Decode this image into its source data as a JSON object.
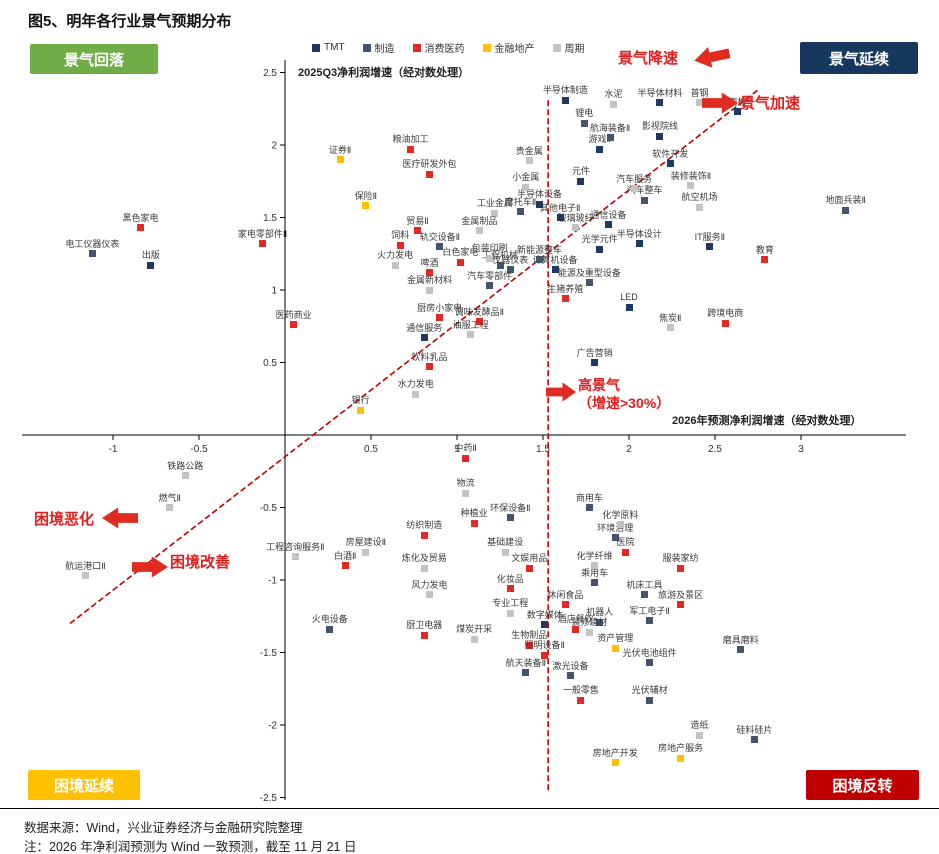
{
  "page": {
    "title": "图5、明年各行业景气预期分布",
    "footer": {
      "source": "数据来源：Wind，兴业证券经济与金融研究院整理",
      "note": "注：2026 年净利润预测为 Wind 一致预测，截至 11 月 21 日"
    }
  },
  "annotations": {
    "quadrants": [
      {
        "text": "景气回落",
        "bg": "#70ad47"
      },
      {
        "text": "景气延续",
        "bg": "#17375e"
      },
      {
        "text": "困境延续",
        "bg": "#ffc000"
      },
      {
        "text": "困境反转",
        "bg": "#c00000"
      }
    ],
    "arrows": [
      {
        "id": "slowdown",
        "text": "景气降速",
        "direction": "left"
      },
      {
        "id": "accel",
        "text": "景气加速",
        "direction": "right"
      },
      {
        "id": "high",
        "text": "高景气\n（增速>30%）",
        "direction": "right"
      },
      {
        "id": "worsen",
        "text": "困境恶化",
        "direction": "left"
      },
      {
        "id": "improve",
        "text": "困境改善",
        "direction": "right"
      }
    ]
  },
  "chart_data": {
    "type": "scatter",
    "title": "图5、明年各行业景气预期分布",
    "xlabel": "2026年预测净利润增速（经对数处理）",
    "ylabel": "2025Q3净利润增速（经对数处理）",
    "xlim": [
      -1.5,
      3.5
    ],
    "ylim": [
      -2.6,
      2.6
    ],
    "x_ticks": [
      -1,
      -0.5,
      0.5,
      1,
      1.5,
      2,
      2.5,
      3
    ],
    "y_ticks": [
      2.5,
      2,
      1.5,
      1,
      0.5,
      -0.5,
      -1,
      -1.5,
      -2,
      -2.5
    ],
    "grid": false,
    "legend_position": "top-center",
    "legend": [
      {
        "name": "TMT",
        "color": "#1f3864"
      },
      {
        "name": "制造",
        "color": "#44546a"
      },
      {
        "name": "消费医药",
        "color": "#e02a23"
      },
      {
        "name": "金融地产",
        "color": "#ffc000"
      },
      {
        "name": "周期",
        "color": "#c3c3c3"
      }
    ],
    "reference_lines": {
      "diagonal": {
        "from": {
          "x": -1.25,
          "y": -1.3
        },
        "to": {
          "x": 2.75,
          "y": 2.38
        },
        "style": "dashed",
        "color": "#c00000"
      },
      "vertical": {
        "x": 1.53,
        "y_from": -2.45,
        "y_to": 2.31,
        "style": "dashed",
        "color": "#c00000"
      }
    },
    "series": [
      {
        "name": "TMT",
        "color": "#1f3864",
        "points": [
          {
            "label": "半导体制造",
            "x": 1.63,
            "y": 2.31
          },
          {
            "label": "半导体材料",
            "x": 2.18,
            "y": 2.29
          },
          {
            "label": "面板",
            "x": 2.63,
            "y": 2.23
          },
          {
            "label": "影视院线",
            "x": 2.18,
            "y": 2.06
          },
          {
            "label": "游戏Ⅱ",
            "x": 1.83,
            "y": 1.97
          },
          {
            "label": "软件开发",
            "x": 2.24,
            "y": 1.87
          },
          {
            "label": "元件",
            "x": 1.72,
            "y": 1.75
          },
          {
            "label": "其他电子Ⅱ",
            "x": 1.6,
            "y": 1.5
          },
          {
            "label": "半导体设备",
            "x": 1.48,
            "y": 1.59
          },
          {
            "label": "通信设备",
            "x": 1.88,
            "y": 1.45
          },
          {
            "label": "半导体设计",
            "x": 2.06,
            "y": 1.32
          },
          {
            "label": "光学元件",
            "x": 1.83,
            "y": 1.28
          },
          {
            "label": "IT服务Ⅱ",
            "x": 2.47,
            "y": 1.3
          },
          {
            "label": "计算机设备",
            "x": 1.57,
            "y": 1.14
          },
          {
            "label": "LED",
            "x": 2.0,
            "y": 0.88
          },
          {
            "label": "广告营销",
            "x": 1.8,
            "y": 0.5
          },
          {
            "label": "通信服务",
            "x": 0.81,
            "y": 0.67
          },
          {
            "label": "出版",
            "x": -0.78,
            "y": 1.17
          },
          {
            "label": "数字媒体",
            "x": 1.51,
            "y": -1.31
          }
        ]
      },
      {
        "name": "制造",
        "color": "#44546a",
        "points": [
          {
            "label": "锂电",
            "x": 1.74,
            "y": 2.15
          },
          {
            "label": "航海装备Ⅱ",
            "x": 1.89,
            "y": 2.05
          },
          {
            "label": "地面兵装Ⅱ",
            "x": 3.26,
            "y": 1.55
          },
          {
            "label": "汽车整车",
            "x": 2.09,
            "y": 1.62
          },
          {
            "label": "摩托车Ⅱ",
            "x": 1.37,
            "y": 1.54
          },
          {
            "label": "电工仪器仪表",
            "x": -1.12,
            "y": 1.25
          },
          {
            "label": "轨交设备Ⅱ",
            "x": 0.9,
            "y": 1.3
          },
          {
            "label": "工程机械",
            "x": 1.25,
            "y": 1.17
          },
          {
            "label": "仪器仪表",
            "x": 1.31,
            "y": 1.14
          },
          {
            "label": "新能源整车",
            "x": 1.48,
            "y": 1.21
          },
          {
            "label": "汽车零部件",
            "x": 1.19,
            "y": 1.03
          },
          {
            "label": "能源及重型设备",
            "x": 1.77,
            "y": 1.05
          },
          {
            "label": "商用车",
            "x": 1.77,
            "y": -0.5
          },
          {
            "label": "环保设备Ⅱ",
            "x": 1.31,
            "y": -0.57
          },
          {
            "label": "环境治理",
            "x": 1.92,
            "y": -0.71
          },
          {
            "label": "乘用车",
            "x": 1.8,
            "y": -1.02
          },
          {
            "label": "机床工具",
            "x": 2.09,
            "y": -1.1
          },
          {
            "label": "军工电子Ⅱ",
            "x": 2.12,
            "y": -1.28
          },
          {
            "label": "机器人",
            "x": 1.83,
            "y": -1.29
          },
          {
            "label": "火电设备",
            "x": 0.26,
            "y": -1.34
          },
          {
            "label": "磨具磨料",
            "x": 2.65,
            "y": -1.48
          },
          {
            "label": "航天装备Ⅱ",
            "x": 1.4,
            "y": -1.64
          },
          {
            "label": "激光设备",
            "x": 1.66,
            "y": -1.66
          },
          {
            "label": "光伏电池组件",
            "x": 2.12,
            "y": -1.57
          },
          {
            "label": "光伏辅材",
            "x": 2.12,
            "y": -1.83
          },
          {
            "label": "硅料硅片",
            "x": 2.73,
            "y": -2.1
          }
        ]
      },
      {
        "name": "消费医药",
        "color": "#e02a23",
        "points": [
          {
            "label": "粮油加工",
            "x": 0.73,
            "y": 1.97
          },
          {
            "label": "医疗研发外包",
            "x": 0.84,
            "y": 1.8
          },
          {
            "label": "黑色家电",
            "x": -0.84,
            "y": 1.43
          },
          {
            "label": "家电零部件Ⅱ",
            "x": -0.13,
            "y": 1.32
          },
          {
            "label": "贸易Ⅱ",
            "x": 0.77,
            "y": 1.41
          },
          {
            "label": "饲料",
            "x": 0.67,
            "y": 1.31
          },
          {
            "label": "白色家电",
            "x": 1.02,
            "y": 1.19
          },
          {
            "label": "啤酒",
            "x": 0.84,
            "y": 1.12
          },
          {
            "label": "教育",
            "x": 2.79,
            "y": 1.21
          },
          {
            "label": "生猪养殖",
            "x": 1.63,
            "y": 0.94
          },
          {
            "label": "厨房小家电",
            "x": 0.9,
            "y": 0.81
          },
          {
            "label": "调味发酵品Ⅱ",
            "x": 1.13,
            "y": 0.78
          },
          {
            "label": "医药商业",
            "x": 0.05,
            "y": 0.76
          },
          {
            "label": "跨境电商",
            "x": 2.56,
            "y": 0.77
          },
          {
            "label": "饮料乳品",
            "x": 0.84,
            "y": 0.47
          },
          {
            "label": "中药Ⅱ",
            "x": 1.05,
            "y": -0.16
          },
          {
            "label": "种植业",
            "x": 1.1,
            "y": -0.61
          },
          {
            "label": "纺织制造",
            "x": 0.81,
            "y": -0.69
          },
          {
            "label": "白酒Ⅱ",
            "x": 0.35,
            "y": -0.9
          },
          {
            "label": "文娱用品",
            "x": 1.42,
            "y": -0.92
          },
          {
            "label": "医院",
            "x": 1.98,
            "y": -0.81
          },
          {
            "label": "服装家纺",
            "x": 2.3,
            "y": -0.92
          },
          {
            "label": "化妆品",
            "x": 1.31,
            "y": -1.06
          },
          {
            "label": "休闲食品",
            "x": 1.63,
            "y": -1.17
          },
          {
            "label": "旅游及景区",
            "x": 2.3,
            "y": -1.17
          },
          {
            "label": "酒店餐饮",
            "x": 1.69,
            "y": -1.34
          },
          {
            "label": "厨卫电器",
            "x": 0.81,
            "y": -1.38
          },
          {
            "label": "生物制品",
            "x": 1.42,
            "y": -1.45
          },
          {
            "label": "照明设备Ⅱ",
            "x": 1.51,
            "y": -1.52
          },
          {
            "label": "一般零售",
            "x": 1.72,
            "y": -1.83
          }
        ]
      },
      {
        "name": "金融地产",
        "color": "#ffc000",
        "points": [
          {
            "label": "证券Ⅱ",
            "x": 0.32,
            "y": 1.9
          },
          {
            "label": "保险Ⅱ",
            "x": 0.47,
            "y": 1.58
          },
          {
            "label": "银行",
            "x": 0.44,
            "y": 0.17
          },
          {
            "label": "资产管理",
            "x": 1.92,
            "y": -1.47
          },
          {
            "label": "房地产开发",
            "x": 1.92,
            "y": -2.26
          },
          {
            "label": "房地产服务",
            "x": 2.3,
            "y": -2.23
          }
        ]
      },
      {
        "name": "周期",
        "color": "#c3c3c3",
        "points": [
          {
            "label": "水泥",
            "x": 1.91,
            "y": 2.28
          },
          {
            "label": "普钢",
            "x": 2.41,
            "y": 2.29
          },
          {
            "label": "贵金属",
            "x": 1.42,
            "y": 1.89
          },
          {
            "label": "小金属",
            "x": 1.4,
            "y": 1.71
          },
          {
            "label": "装修装饰Ⅱ",
            "x": 2.36,
            "y": 1.72
          },
          {
            "label": "汽车服务",
            "x": 2.03,
            "y": 1.7
          },
          {
            "label": "航空机场",
            "x": 2.41,
            "y": 1.57
          },
          {
            "label": "工业金属",
            "x": 1.22,
            "y": 1.53
          },
          {
            "label": "金属制品",
            "x": 1.13,
            "y": 1.41
          },
          {
            "label": "玻璃玻纤",
            "x": 1.69,
            "y": 1.43
          },
          {
            "label": "包装印刷",
            "x": 1.19,
            "y": 1.22
          },
          {
            "label": "火力发电",
            "x": 0.64,
            "y": 1.17
          },
          {
            "label": "金属新材料",
            "x": 0.84,
            "y": 1.0
          },
          {
            "label": "油服工程",
            "x": 1.08,
            "y": 0.69
          },
          {
            "label": "焦炭Ⅱ",
            "x": 2.24,
            "y": 0.74
          },
          {
            "label": "水力发电",
            "x": 0.76,
            "y": 0.28
          },
          {
            "label": "铁路公路",
            "x": -0.58,
            "y": -0.28
          },
          {
            "label": "燃气Ⅱ",
            "x": -0.67,
            "y": -0.5
          },
          {
            "label": "航运港口Ⅱ",
            "x": -1.16,
            "y": -0.97
          },
          {
            "label": "工程咨询服务Ⅱ",
            "x": 0.06,
            "y": -0.84
          },
          {
            "label": "物流",
            "x": 1.05,
            "y": -0.4
          },
          {
            "label": "化学原料",
            "x": 1.95,
            "y": -0.62
          },
          {
            "label": "化学纤维",
            "x": 1.8,
            "y": -0.9
          },
          {
            "label": "房屋建设Ⅱ",
            "x": 0.47,
            "y": -0.81
          },
          {
            "label": "基础建设",
            "x": 1.28,
            "y": -0.81
          },
          {
            "label": "炼化及贸易",
            "x": 0.81,
            "y": -0.92
          },
          {
            "label": "风力发电",
            "x": 0.84,
            "y": -1.1
          },
          {
            "label": "专业工程",
            "x": 1.31,
            "y": -1.23
          },
          {
            "label": "装修建材",
            "x": 1.77,
            "y": -1.36
          },
          {
            "label": "煤炭开采",
            "x": 1.1,
            "y": -1.41
          },
          {
            "label": "造纸",
            "x": 2.41,
            "y": -2.07
          }
        ]
      }
    ]
  }
}
